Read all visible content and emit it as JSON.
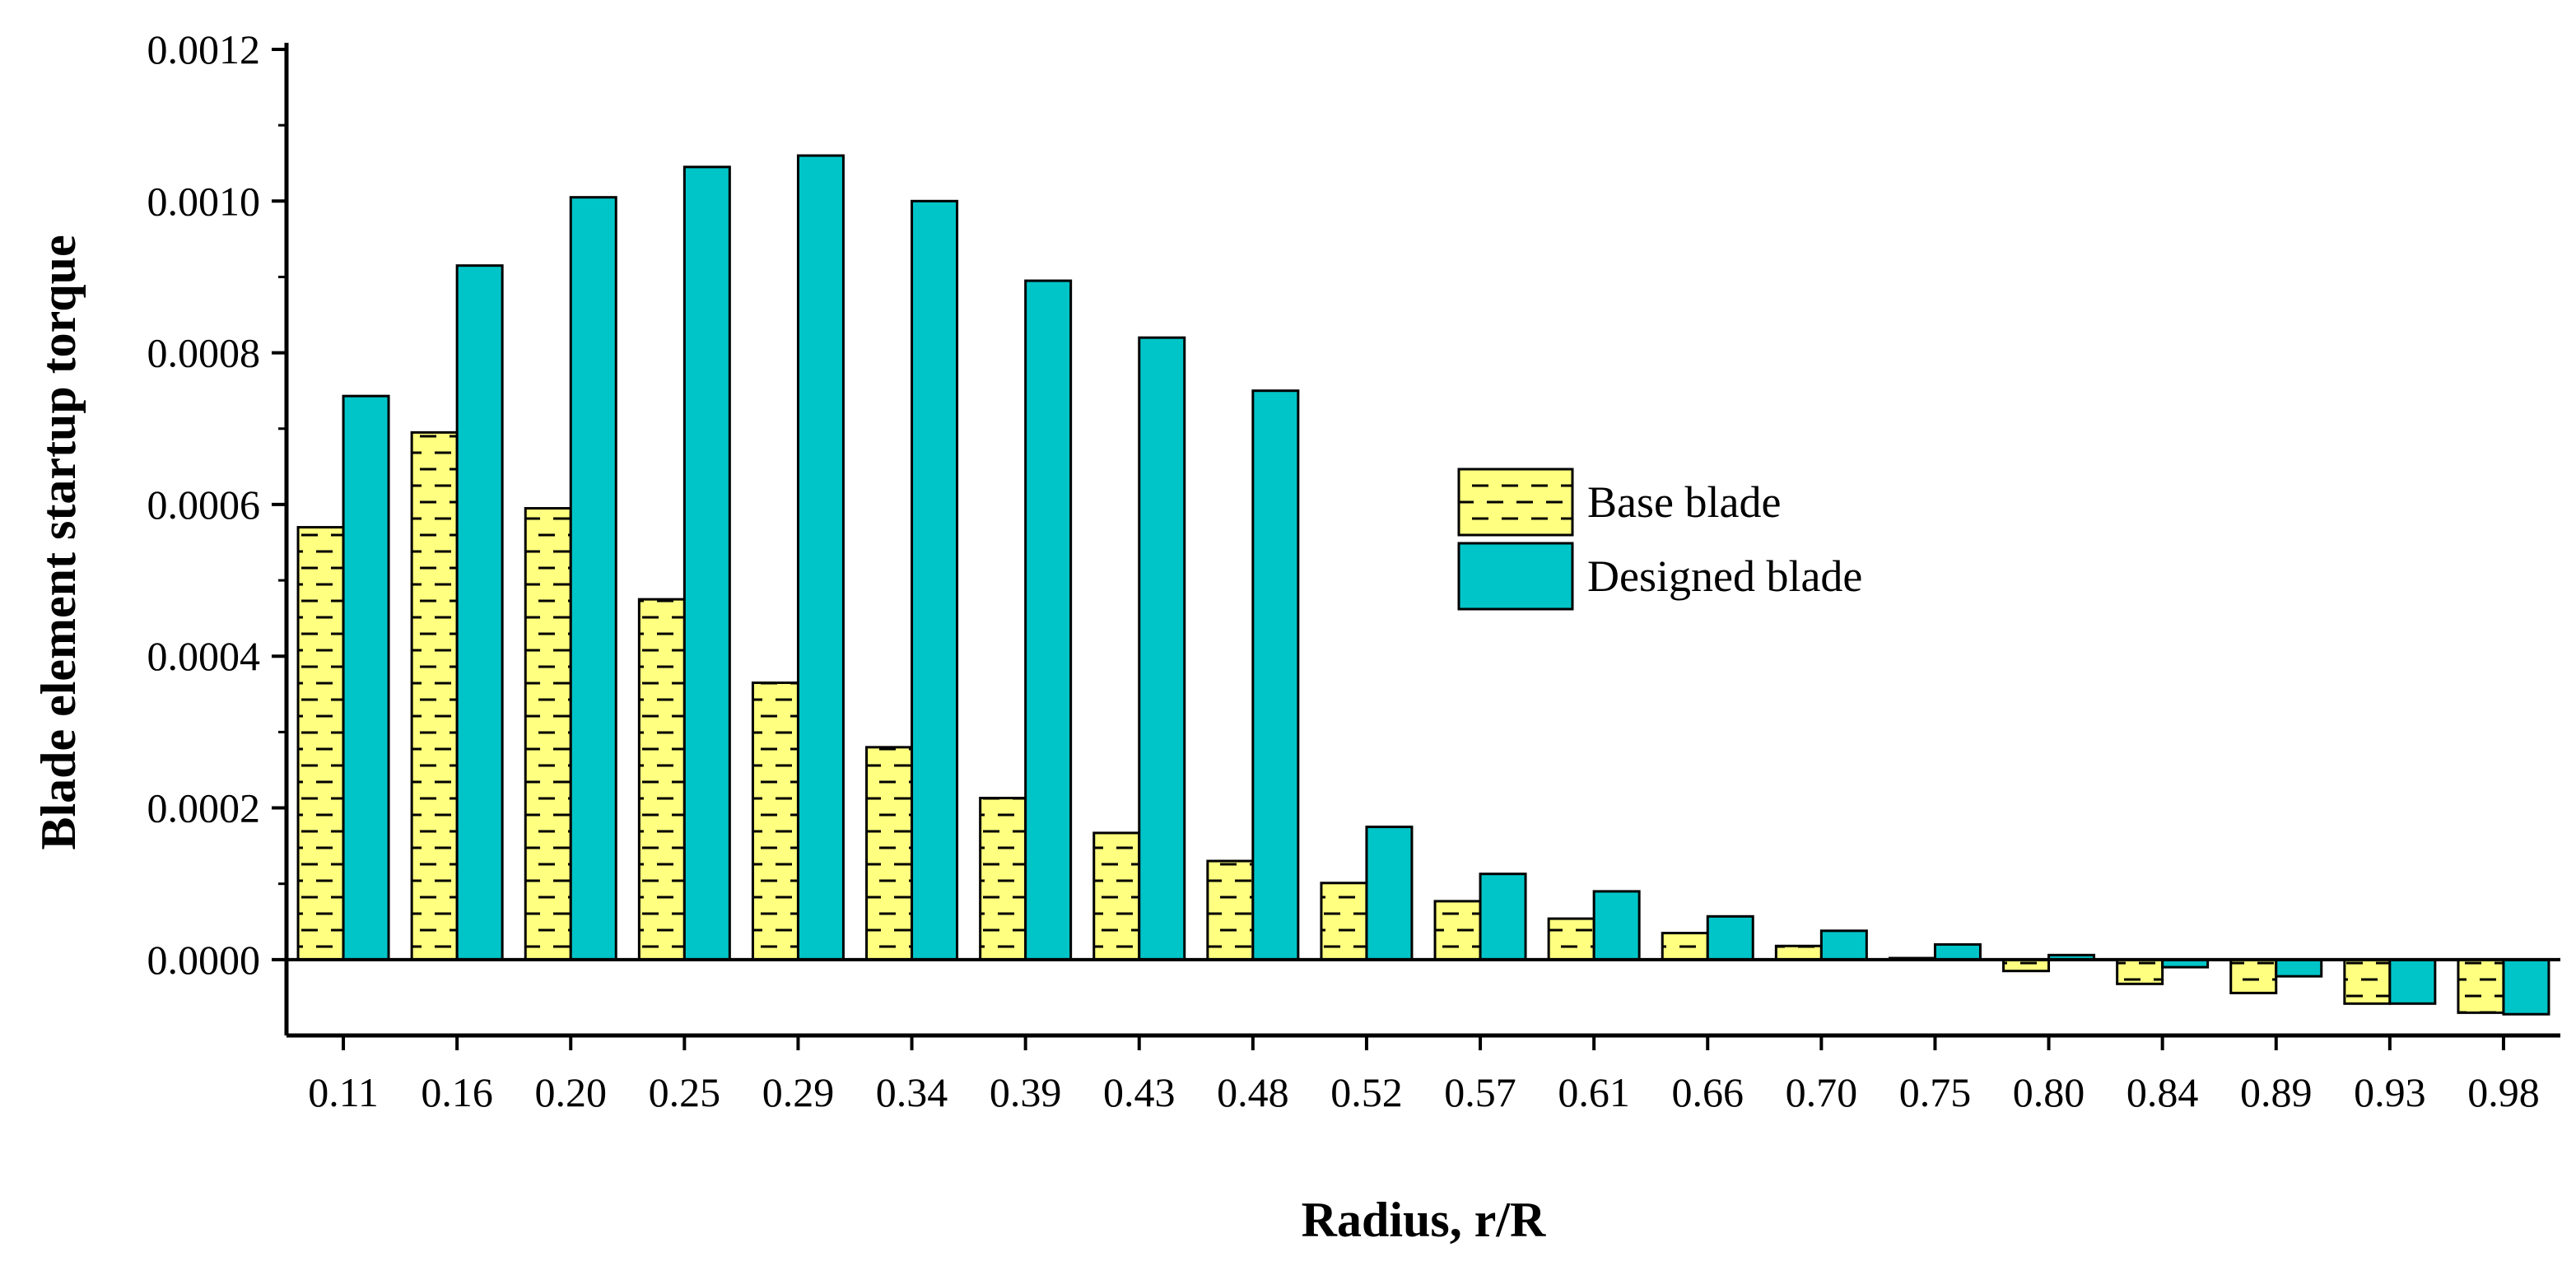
{
  "chart_data": {
    "type": "bar",
    "xlabel": "Radius, r/R",
    "ylabel": "Blade element startup torque",
    "ylim": [
      -0.0001,
      0.0012
    ],
    "yticks": [
      "0.0000",
      "0.0002",
      "0.0004",
      "0.0006",
      "0.0008",
      "0.0010",
      "0.0012"
    ],
    "ytick_values": [
      0,
      0.0002,
      0.0004,
      0.0006,
      0.0008,
      0.001,
      0.0012
    ],
    "categories": [
      "0.11",
      "0.16",
      "0.20",
      "0.25",
      "0.29",
      "0.34",
      "0.39",
      "0.43",
      "0.48",
      "0.52",
      "0.57",
      "0.61",
      "0.66",
      "0.70",
      "0.75",
      "0.80",
      "0.84",
      "0.89",
      "0.93",
      "0.98"
    ],
    "series": [
      {
        "name": "Base blade",
        "color": "#ffff80",
        "pattern": "dashes",
        "values": [
          0.00057,
          0.000695,
          0.000595,
          0.000475,
          0.000365,
          0.00028,
          0.000213,
          0.000167,
          0.00013,
          0.000101,
          7.7e-05,
          5.4e-05,
          3.5e-05,
          1.8e-05,
          2e-06,
          -1.5e-05,
          -3.2e-05,
          -4.4e-05,
          -5.8e-05,
          -7e-05
        ]
      },
      {
        "name": "Designed blade",
        "color": "#00c5c8",
        "pattern": "solid",
        "values": [
          0.000743,
          0.000915,
          0.001005,
          0.001045,
          0.00106,
          0.001,
          0.000895,
          0.00082,
          0.00075,
          0.000175,
          0.000113,
          9e-05,
          5.7e-05,
          3.8e-05,
          2e-05,
          6e-06,
          -1e-05,
          -2.2e-05,
          -5.8e-05,
          -7.2e-05
        ]
      }
    ],
    "legend_position": "center-right",
    "grid": false
  }
}
